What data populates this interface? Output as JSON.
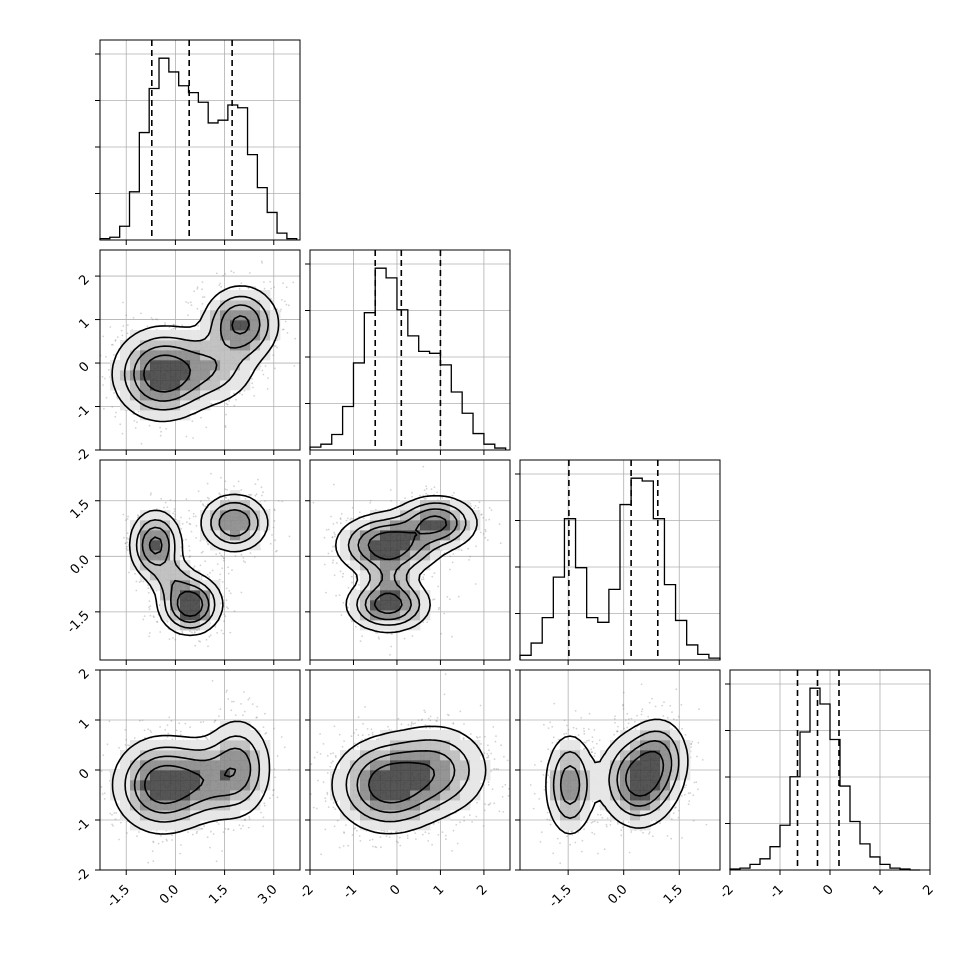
{
  "chart_data": {
    "type": "corner",
    "title": "",
    "parameters": [
      "",
      "",
      "",
      ""
    ],
    "grid": true,
    "styles": {
      "frame_color": "#000000",
      "grid_color": "#b0b0b0",
      "hist_color": "#000000",
      "quantile_line_color": "#000000",
      "contour_color": "#000000",
      "density_colors": [
        "#ffffff",
        "#e6e6e6",
        "#bdbdbd",
        "#8a8a8a",
        "#444444",
        "#111111"
      ],
      "scatter_color": "#808080"
    },
    "axes_ranges": [
      [
        -2.3,
        3.8
      ],
      [
        -2.0,
        2.6
      ],
      [
        -2.8,
        2.6
      ],
      [
        -2.0,
        2.0
      ]
    ],
    "tick_labels": {
      "x": [
        [
          "-1.5",
          "0.0",
          "1.5",
          "3.0"
        ],
        [
          "-2",
          "-1",
          "0",
          "1",
          "2"
        ],
        [
          "-1.5",
          "0.0",
          "1.5"
        ],
        [
          "-2",
          "-1",
          "0",
          "1",
          "2"
        ]
      ],
      "y": [
        [],
        [
          "-2",
          "-1",
          "0",
          "1",
          "2"
        ],
        [
          "-1.5",
          "0.0",
          "1.5"
        ],
        [
          "-2",
          "-1",
          "0",
          "1",
          "2"
        ]
      ]
    },
    "diagonal_histograms": [
      {
        "parameter_index": 0,
        "bin_edges": [
          -2.3,
          -2.0,
          -1.7,
          -1.4,
          -1.1,
          -0.8,
          -0.5,
          -0.2,
          0.1,
          0.4,
          0.7,
          1.0,
          1.3,
          1.6,
          1.9,
          2.2,
          2.5,
          2.8,
          3.1,
          3.4,
          3.7
        ],
        "counts": [
          1,
          2,
          10,
          35,
          78,
          110,
          132,
          122,
          112,
          107,
          100,
          85,
          87,
          98,
          96,
          62,
          38,
          20,
          5,
          1
        ],
        "quantiles": [
          -0.72,
          0.42,
          1.73
        ]
      },
      {
        "parameter_index": 1,
        "bin_edges": [
          -2.0,
          -1.75,
          -1.5,
          -1.25,
          -1.0,
          -0.75,
          -0.5,
          -0.25,
          0.0,
          0.25,
          0.5,
          0.75,
          1.0,
          1.25,
          1.5,
          1.75,
          2.0,
          2.25,
          2.5
        ],
        "counts": [
          3,
          6,
          16,
          45,
          90,
          142,
          188,
          178,
          145,
          118,
          102,
          100,
          88,
          60,
          38,
          17,
          6,
          2
        ],
        "quantiles": [
          -0.5,
          0.1,
          1.0
        ]
      },
      {
        "parameter_index": 2,
        "bin_edges": [
          -2.8,
          -2.5,
          -2.2,
          -1.9,
          -1.6,
          -1.3,
          -1.0,
          -0.7,
          -0.4,
          -0.1,
          0.2,
          0.5,
          0.8,
          1.1,
          1.4,
          1.7,
          2.0,
          2.3,
          2.6
        ],
        "counts": [
          5,
          18,
          45,
          88,
          150,
          98,
          45,
          40,
          75,
          165,
          193,
          190,
          150,
          80,
          42,
          16,
          6,
          2
        ],
        "quantiles": [
          -1.48,
          0.2,
          0.92
        ]
      },
      {
        "parameter_index": 3,
        "bin_edges": [
          -2.0,
          -1.8,
          -1.6,
          -1.4,
          -1.2,
          -1.0,
          -0.8,
          -0.6,
          -0.4,
          -0.2,
          0.0,
          0.2,
          0.4,
          0.6,
          0.8,
          1.0,
          1.2,
          1.4,
          1.6,
          1.8
        ],
        "counts": [
          1,
          2,
          6,
          12,
          25,
          48,
          100,
          148,
          195,
          178,
          140,
          90,
          52,
          28,
          14,
          6,
          2,
          1,
          0
        ],
        "quantiles": [
          -0.65,
          -0.25,
          0.18
        ]
      }
    ],
    "joint_panels": [
      {
        "x_param": 0,
        "y_param": 1,
        "modes": [
          {
            "x": -0.4,
            "y": -0.25,
            "sx": 0.7,
            "sy": 0.5,
            "weight": 1.0
          },
          {
            "x": 1.1,
            "y": -0.1,
            "sx": 0.7,
            "sy": 0.45,
            "weight": 0.4
          },
          {
            "x": 2.0,
            "y": 0.9,
            "sx": 0.55,
            "sy": 0.42,
            "weight": 0.8
          }
        ]
      },
      {
        "x_param": 0,
        "y_param": 2,
        "modes": [
          {
            "x": -0.6,
            "y": 0.3,
            "sx": 0.38,
            "sy": 0.45,
            "weight": 0.8
          },
          {
            "x": 0.45,
            "y": -1.3,
            "sx": 0.45,
            "sy": 0.38,
            "weight": 1.0
          },
          {
            "x": 1.8,
            "y": 0.9,
            "sx": 0.5,
            "sy": 0.38,
            "weight": 0.7
          },
          {
            "x": -0.1,
            "y": -0.6,
            "sx": 0.35,
            "sy": 0.3,
            "weight": 0.3
          }
        ]
      },
      {
        "x_param": 1,
        "y_param": 2,
        "modes": [
          {
            "x": -0.2,
            "y": 0.3,
            "sx": 0.55,
            "sy": 0.4,
            "weight": 1.0
          },
          {
            "x": 0.9,
            "y": 0.9,
            "sx": 0.45,
            "sy": 0.35,
            "weight": 0.8
          },
          {
            "x": -0.2,
            "y": -1.3,
            "sx": 0.45,
            "sy": 0.35,
            "weight": 0.9
          },
          {
            "x": -0.2,
            "y": -0.55,
            "sx": 0.3,
            "sy": 0.28,
            "weight": 0.3
          }
        ]
      },
      {
        "x_param": 0,
        "y_param": 3,
        "modes": [
          {
            "x": -0.4,
            "y": -0.3,
            "sx": 0.7,
            "sy": 0.45,
            "weight": 1.0
          },
          {
            "x": 0.9,
            "y": -0.2,
            "sx": 0.65,
            "sy": 0.4,
            "weight": 0.5
          },
          {
            "x": 1.9,
            "y": 0.05,
            "sx": 0.5,
            "sy": 0.48,
            "weight": 0.6
          }
        ]
      },
      {
        "x_param": 1,
        "y_param": 3,
        "modes": [
          {
            "x": -0.2,
            "y": -0.3,
            "sx": 0.6,
            "sy": 0.45,
            "weight": 1.0
          },
          {
            "x": 0.9,
            "y": 0.0,
            "sx": 0.6,
            "sy": 0.45,
            "weight": 0.6
          }
        ]
      },
      {
        "x_param": 2,
        "y_param": 3,
        "modes": [
          {
            "x": -1.45,
            "y": -0.3,
            "sx": 0.33,
            "sy": 0.5,
            "weight": 0.7
          },
          {
            "x": 0.4,
            "y": -0.2,
            "sx": 0.5,
            "sy": 0.45,
            "weight": 1.0
          },
          {
            "x": 0.95,
            "y": 0.25,
            "sx": 0.4,
            "sy": 0.4,
            "weight": 0.55
          }
        ]
      }
    ]
  }
}
